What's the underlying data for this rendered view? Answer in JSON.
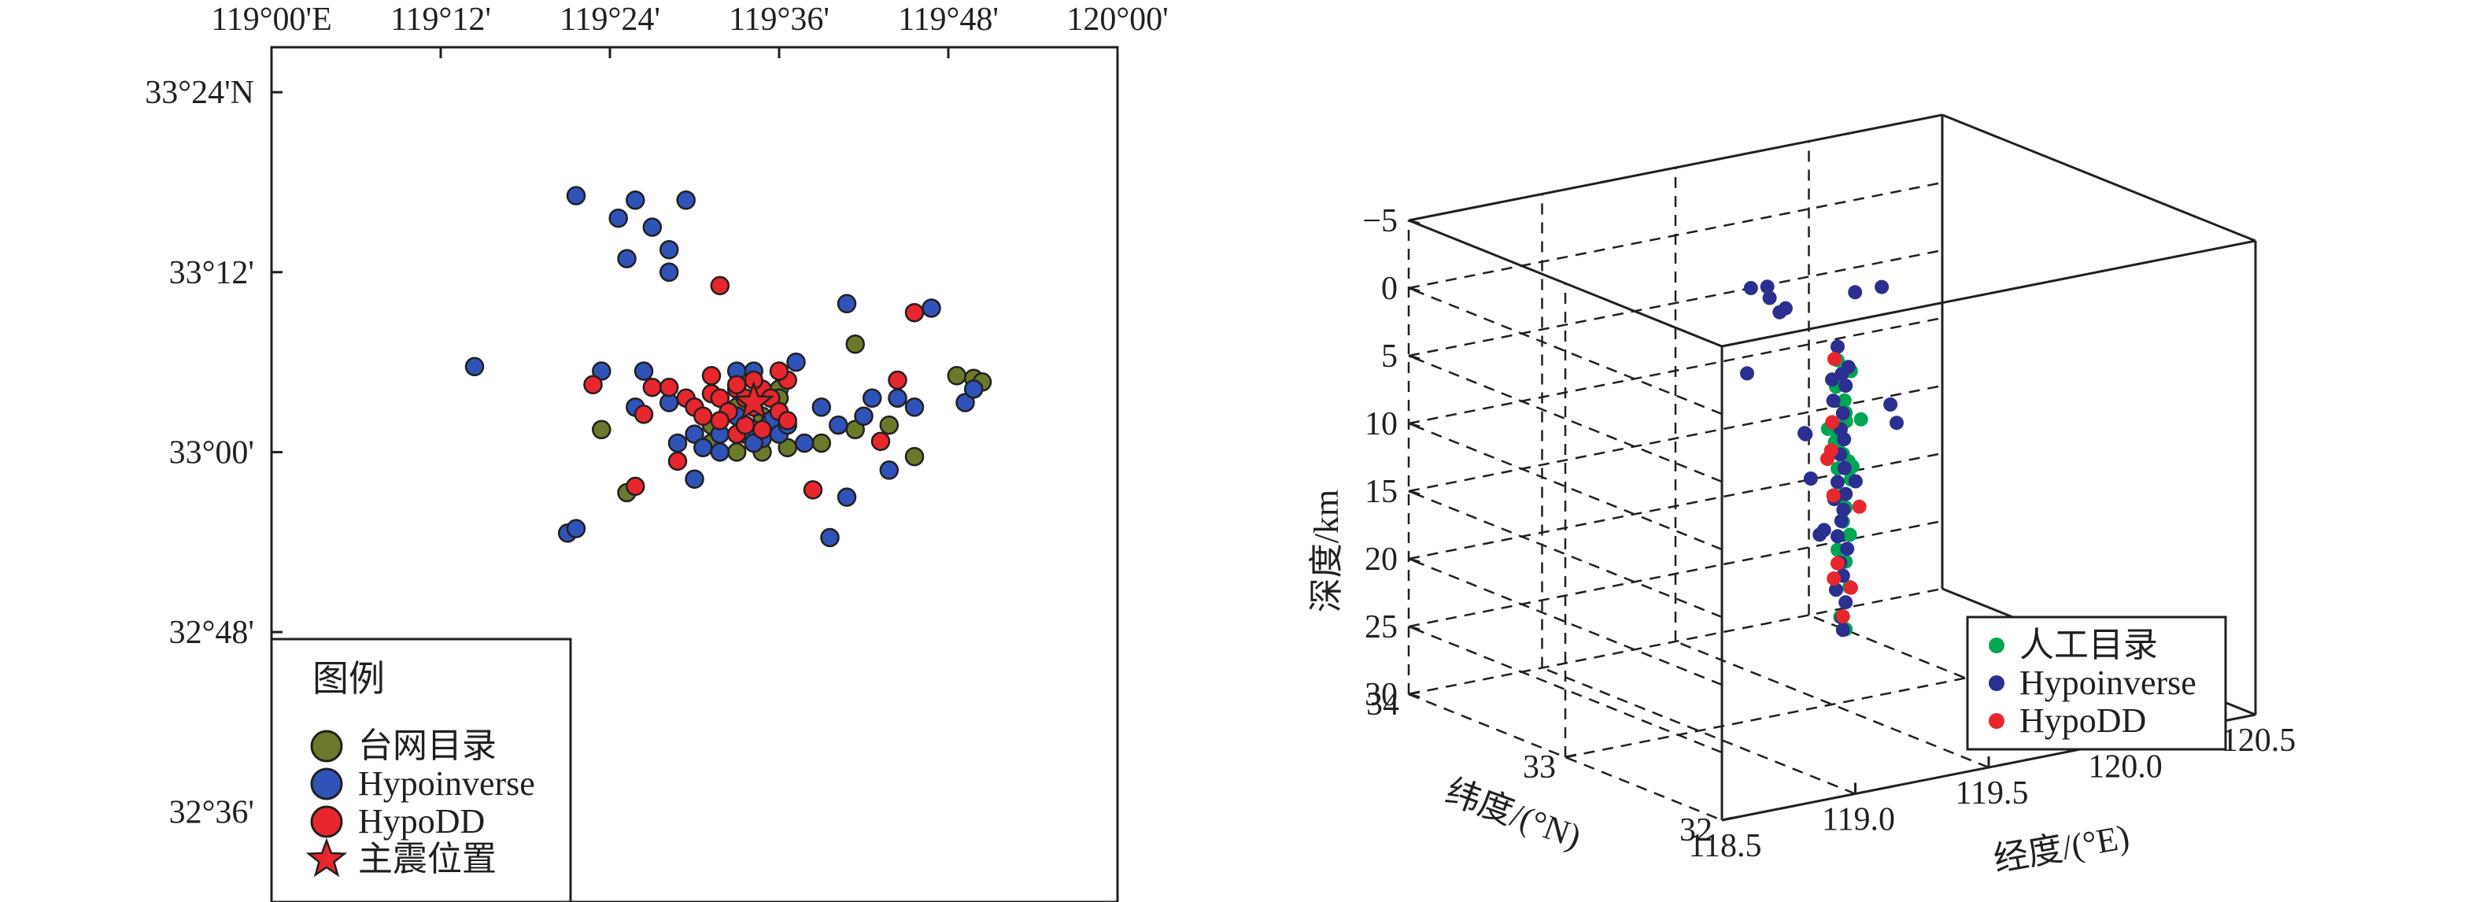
{
  "colors": {
    "catalog_olive": "#6b7a2a",
    "hypoinverse_blue": "#2f53b8",
    "hypodd_red": "#e8262d",
    "manual_green": "#00a651",
    "hypoinverse_navy": "#2b2f8f",
    "axis": "#231f20"
  },
  "chart_data": [
    {
      "type": "scatter",
      "xlabel": "",
      "ylabel": "",
      "xlim": [
        119.0,
        120.0
      ],
      "ylim": [
        32.5,
        33.45
      ],
      "x_ticks": [
        {
          "value": 119.0,
          "label": "119°00'E"
        },
        {
          "value": 119.2,
          "label": "119°12'"
        },
        {
          "value": 119.4,
          "label": "119°24'"
        },
        {
          "value": 119.6,
          "label": "119°36'"
        },
        {
          "value": 119.8,
          "label": "119°48'"
        },
        {
          "value": 120.0,
          "label": "120°00'"
        }
      ],
      "y_ticks": [
        {
          "value": 33.4,
          "label": "33°24'N"
        },
        {
          "value": 33.2,
          "label": "33°12'"
        },
        {
          "value": 33.0,
          "label": "33°00'"
        },
        {
          "value": 32.8,
          "label": "32°48'"
        },
        {
          "value": 32.6,
          "label": "32°36'"
        }
      ],
      "legend": {
        "title": "图例",
        "placement": "bottom-left",
        "items": [
          {
            "label": "台网目录",
            "marker": "circle",
            "color": "#6b7a2a"
          },
          {
            "label": "Hypoinverse",
            "marker": "circle",
            "color": "#2f53b8"
          },
          {
            "label": "HypoDD",
            "marker": "circle",
            "color": "#e8262d"
          },
          {
            "label": "主震位置",
            "marker": "star",
            "color": "#e8262d"
          }
        ]
      },
      "series": [
        {
          "name": "台网目录",
          "color": "#6b7a2a",
          "points": [
            [
              119.39,
              33.025
            ],
            [
              119.42,
              32.955
            ],
            [
              119.52,
              33.01
            ],
            [
              119.55,
              33.0
            ],
            [
              119.58,
              33.0
            ],
            [
              119.61,
              33.005
            ],
            [
              119.65,
              33.01
            ],
            [
              119.69,
              33.025
            ],
            [
              119.58,
              33.04
            ],
            [
              119.55,
              33.05
            ],
            [
              119.52,
              33.03
            ],
            [
              119.6,
              33.07
            ],
            [
              119.69,
              33.12
            ],
            [
              119.73,
              33.03
            ],
            [
              119.81,
              33.085
            ],
            [
              119.83,
              33.082
            ],
            [
              119.84,
              33.078
            ],
            [
              119.76,
              32.995
            ],
            [
              119.6,
              33.06
            ]
          ]
        },
        {
          "name": "Hypoinverse",
          "color": "#2f53b8",
          "points": [
            [
              119.36,
              33.285
            ],
            [
              119.41,
              33.26
            ],
            [
              119.43,
              33.28
            ],
            [
              119.45,
              33.25
            ],
            [
              119.49,
              33.28
            ],
            [
              119.42,
              33.215
            ],
            [
              119.47,
              33.225
            ],
            [
              119.47,
              33.2
            ],
            [
              119.24,
              33.095
            ],
            [
              119.39,
              33.09
            ],
            [
              119.44,
              33.09
            ],
            [
              119.43,
              33.05
            ],
            [
              119.47,
              33.055
            ],
            [
              119.48,
              33.01
            ],
            [
              119.5,
              33.02
            ],
            [
              119.51,
              33.005
            ],
            [
              119.53,
              33.0
            ],
            [
              119.55,
              33.04
            ],
            [
              119.56,
              33.02
            ],
            [
              119.58,
              33.015
            ],
            [
              119.59,
              33.035
            ],
            [
              119.6,
              33.02
            ],
            [
              119.61,
              33.03
            ],
            [
              119.62,
              33.1
            ],
            [
              119.63,
              33.01
            ],
            [
              119.65,
              33.05
            ],
            [
              119.67,
              33.03
            ],
            [
              119.68,
              33.165
            ],
            [
              119.7,
              33.04
            ],
            [
              119.71,
              33.06
            ],
            [
              119.74,
              33.06
            ],
            [
              119.76,
              33.05
            ],
            [
              119.82,
              33.055
            ],
            [
              119.83,
              33.07
            ],
            [
              119.78,
              33.16
            ],
            [
              119.5,
              32.97
            ],
            [
              119.68,
              32.95
            ],
            [
              119.66,
              32.905
            ],
            [
              119.73,
              32.98
            ],
            [
              119.35,
              32.91
            ],
            [
              119.36,
              32.915
            ],
            [
              119.57,
              33.09
            ],
            [
              119.55,
              33.09
            ],
            [
              119.53,
              33.02
            ],
            [
              119.57,
              33.01
            ]
          ]
        },
        {
          "name": "HypoDD",
          "color": "#e8262d",
          "points": [
            [
              119.53,
              33.185
            ],
            [
              119.76,
              33.155
            ],
            [
              119.38,
              33.075
            ],
            [
              119.45,
              33.072
            ],
            [
              119.47,
              33.072
            ],
            [
              119.44,
              33.042
            ],
            [
              119.49,
              33.06
            ],
            [
              119.5,
              33.05
            ],
            [
              119.51,
              33.04
            ],
            [
              119.52,
              33.065
            ],
            [
              119.53,
              33.06
            ],
            [
              119.54,
              33.045
            ],
            [
              119.55,
              33.07
            ],
            [
              119.56,
              33.06
            ],
            [
              119.57,
              33.05
            ],
            [
              119.58,
              33.07
            ],
            [
              119.59,
              33.06
            ],
            [
              119.6,
              33.045
            ],
            [
              119.61,
              33.08
            ],
            [
              119.52,
              33.085
            ],
            [
              119.55,
              33.02
            ],
            [
              119.56,
              33.03
            ],
            [
              119.58,
              33.025
            ],
            [
              119.61,
              33.035
            ],
            [
              119.53,
              33.035
            ],
            [
              119.64,
              32.958
            ],
            [
              119.43,
              32.962
            ],
            [
              119.48,
              32.99
            ],
            [
              119.72,
              33.012
            ],
            [
              119.74,
              33.08
            ],
            [
              119.57,
              33.08
            ],
            [
              119.55,
              33.075
            ],
            [
              119.6,
              33.09
            ]
          ]
        }
      ],
      "mainshock": [
        119.57,
        33.055
      ]
    },
    {
      "type": "scatter",
      "subtype": "3d",
      "xlabel": "经度/(°E)",
      "ylabel": "纬度/(°N)",
      "zlabel": "深度/km",
      "xlim": [
        118.5,
        120.5
      ],
      "ylim": [
        32,
        34
      ],
      "zlim": [
        -5,
        30
      ],
      "x_tick_labels": [
        "118.5",
        "119.0",
        "119.5",
        "120.0",
        "120.5"
      ],
      "y_tick_labels": [
        "32",
        "33",
        "34"
      ],
      "z_tick_labels": [
        "−5",
        "0",
        "5",
        "10",
        "15",
        "20",
        "25",
        "30"
      ],
      "grid": true,
      "legend": {
        "placement": "bottom-right",
        "items": [
          {
            "label": "人工目录",
            "color": "#00a651"
          },
          {
            "label": "Hypoinverse",
            "color": "#2b2f8f"
          },
          {
            "label": "HypoDD",
            "color": "#e8262d"
          }
        ]
      },
      "series": [
        {
          "name": "人工目录",
          "color": "#00a651",
          "points": [
            [
              119.55,
              33.05,
              5
            ],
            [
              119.6,
              33.05,
              6
            ],
            [
              119.62,
              33.02,
              9.5
            ],
            [
              119.55,
              33.06,
              7
            ],
            [
              119.57,
              33.04,
              8
            ],
            [
              119.58,
              33.05,
              9
            ],
            [
              119.52,
              33.06,
              10
            ],
            [
              119.55,
              33.05,
              10.5
            ],
            [
              119.56,
              33.05,
              11
            ],
            [
              119.57,
              33.05,
              12
            ],
            [
              119.58,
              33.03,
              12.5
            ],
            [
              119.55,
              33.05,
              13
            ],
            [
              119.6,
              33.05,
              14
            ],
            [
              119.56,
              33.04,
              15
            ],
            [
              119.58,
              33.05,
              16
            ],
            [
              119.57,
              33.05,
              17
            ],
            [
              119.59,
              33.04,
              18
            ],
            [
              119.55,
              33.05,
              19
            ],
            [
              119.58,
              33.05,
              20
            ],
            [
              119.6,
              33.06,
              22
            ],
            [
              119.56,
              33.05,
              24
            ],
            [
              119.58,
              33.05,
              25
            ],
            [
              119.54,
              33.05,
              11
            ],
            [
              119.57,
              33.03,
              9.5
            ],
            [
              119.6,
              33.04,
              13
            ]
          ]
        },
        {
          "name": "Hypoinverse",
          "color": "#2b2f8f",
          "points": [
            [
              119.36,
              33.28,
              0
            ],
            [
              119.41,
              33.26,
              0
            ],
            [
              119.43,
              33.28,
              1
            ],
            [
              119.45,
              33.25,
              2
            ],
            [
              119.49,
              33.28,
              2
            ],
            [
              119.24,
              33.1,
              5
            ],
            [
              119.35,
              32.92,
              9
            ],
            [
              119.43,
              33.05,
              10
            ],
            [
              119.42,
              33.0,
              13
            ],
            [
              119.5,
              33.0,
              6
            ],
            [
              119.68,
              33.16,
              1
            ],
            [
              119.78,
              33.16,
              1
            ],
            [
              119.55,
              33.05,
              4
            ],
            [
              119.56,
              33.04,
              6
            ],
            [
              119.58,
              33.05,
              7
            ],
            [
              119.54,
              33.06,
              8
            ],
            [
              119.57,
              33.05,
              9
            ],
            [
              119.55,
              33.03,
              10
            ],
            [
              119.58,
              33.06,
              11
            ],
            [
              119.56,
              33.05,
              12
            ],
            [
              119.57,
              33.04,
              13
            ],
            [
              119.55,
              33.05,
              14
            ],
            [
              119.58,
              33.05,
              15
            ],
            [
              119.56,
              33.03,
              16
            ],
            [
              119.57,
              33.06,
              17
            ],
            [
              119.55,
              33.05,
              18
            ],
            [
              119.58,
              33.04,
              19
            ],
            [
              119.56,
              33.05,
              20
            ],
            [
              119.57,
              33.05,
              21
            ],
            [
              119.55,
              33.06,
              22
            ],
            [
              119.58,
              33.05,
              23
            ],
            [
              119.56,
              33.04,
              24
            ],
            [
              119.57,
              33.05,
              25
            ],
            [
              119.47,
              33.0,
              17
            ],
            [
              119.43,
              32.96,
              17
            ],
            [
              119.62,
              33.1,
              6
            ],
            [
              119.66,
              32.9,
              8
            ],
            [
              119.73,
              32.98,
              10
            ],
            [
              119.52,
              33.02,
              15
            ],
            [
              119.6,
              33.02,
              14
            ]
          ]
        },
        {
          "name": "HypoDD",
          "color": "#e8262d",
          "points": [
            [
              119.55,
              33.07,
              5
            ],
            [
              119.53,
              33.05,
              9.5
            ],
            [
              119.52,
              33.04,
              11.5
            ],
            [
              119.54,
              33.06,
              15
            ],
            [
              119.62,
              33.03,
              16
            ],
            [
              119.5,
              33.03,
              12
            ],
            [
              119.55,
              33.05,
              20
            ],
            [
              119.53,
              33.04,
              21
            ],
            [
              119.6,
              33.05,
              22
            ],
            [
              119.57,
              33.05,
              24
            ]
          ]
        }
      ]
    }
  ]
}
